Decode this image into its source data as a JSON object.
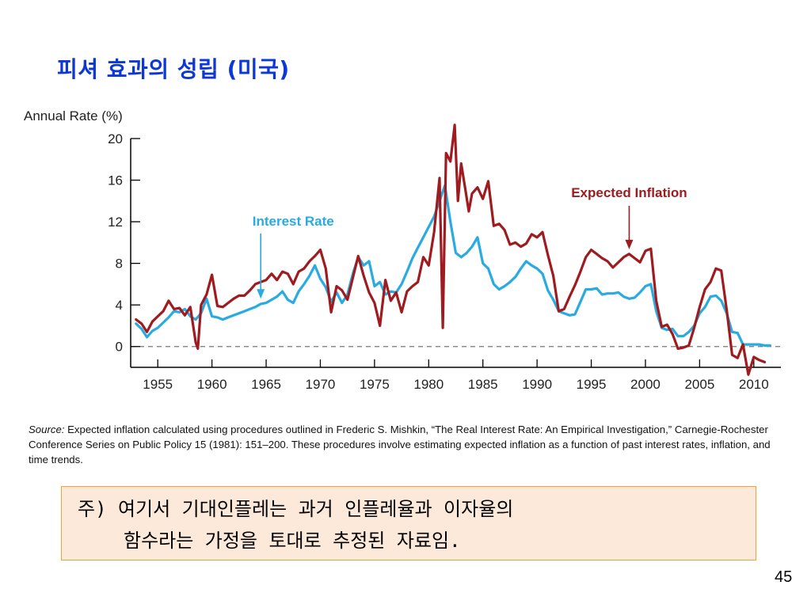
{
  "slide": {
    "title": "피셔 효과의 성립 (미국)",
    "page_number": "45"
  },
  "source": {
    "label": "Source:",
    "text": " Expected inflation calculated using procedures outlined in Frederic S. Mishkin, “The Real Interest Rate: An Empirical Investigation,” Carnegie-Rochester Conference Series on Public Policy 15 (1981): 151–200. These procedures involve estimating expected inflation as a function of past interest rates, inflation, and time trends."
  },
  "note": {
    "line1": "주) 여기서 기대인플레는 과거 인플레율과 이자율의",
    "line2": "함수라는 가정을 토대로 추정된 자료임."
  },
  "chart_data": {
    "type": "line",
    "ylabel": "Annual Rate (%)",
    "xlim": [
      1952.5,
      2012.5
    ],
    "ylim": [
      -2,
      20
    ],
    "yticks": [
      0,
      4,
      8,
      12,
      16,
      20
    ],
    "xticks": [
      1955,
      1960,
      1965,
      1970,
      1975,
      1980,
      1985,
      1990,
      1995,
      2000,
      2005,
      2010
    ],
    "zero_line": "dashed",
    "colors": {
      "interest_rate": "#29abe2",
      "expected_inflation": "#9e1b20"
    },
    "series": [
      {
        "name": "Interest Rate",
        "color": "#29abe2",
        "points": [
          [
            1953,
            2.2
          ],
          [
            1953.5,
            1.7
          ],
          [
            1954,
            0.9
          ],
          [
            1954.5,
            1.5
          ],
          [
            1955,
            1.8
          ],
          [
            1955.5,
            2.3
          ],
          [
            1956,
            2.8
          ],
          [
            1956.5,
            3.4
          ],
          [
            1957,
            3.3
          ],
          [
            1957.5,
            3.6
          ],
          [
            1958,
            2.9
          ],
          [
            1958.5,
            2.6
          ],
          [
            1959,
            3.2
          ],
          [
            1959.5,
            4.6
          ],
          [
            1960,
            2.9
          ],
          [
            1960.5,
            2.8
          ],
          [
            1961,
            2.6
          ],
          [
            1961.5,
            2.8
          ],
          [
            1962,
            3.0
          ],
          [
            1962.5,
            3.2
          ],
          [
            1963,
            3.4
          ],
          [
            1963.5,
            3.6
          ],
          [
            1964,
            3.8
          ],
          [
            1964.5,
            4.1
          ],
          [
            1965,
            4.2
          ],
          [
            1965.5,
            4.5
          ],
          [
            1966,
            4.8
          ],
          [
            1966.5,
            5.3
          ],
          [
            1967,
            4.5
          ],
          [
            1967.5,
            4.2
          ],
          [
            1968,
            5.3
          ],
          [
            1968.5,
            6.0
          ],
          [
            1969,
            6.8
          ],
          [
            1969.5,
            7.8
          ],
          [
            1970,
            6.5
          ],
          [
            1970.5,
            5.7
          ],
          [
            1971,
            4.3
          ],
          [
            1971.5,
            5.2
          ],
          [
            1972,
            4.2
          ],
          [
            1972.5,
            5.0
          ],
          [
            1973,
            7.0
          ],
          [
            1973.5,
            8.6
          ],
          [
            1974,
            7.8
          ],
          [
            1974.5,
            8.2
          ],
          [
            1975,
            5.8
          ],
          [
            1975.5,
            6.2
          ],
          [
            1976,
            5.0
          ],
          [
            1976.5,
            5.3
          ],
          [
            1977,
            5.2
          ],
          [
            1977.5,
            6.0
          ],
          [
            1978,
            7.2
          ],
          [
            1978.5,
            8.5
          ],
          [
            1979,
            9.5
          ],
          [
            1979.5,
            10.5
          ],
          [
            1980,
            11.5
          ],
          [
            1980.5,
            12.5
          ],
          [
            1981,
            14.0
          ],
          [
            1981.5,
            15.5
          ],
          [
            1982,
            12.0
          ],
          [
            1982.5,
            9.0
          ],
          [
            1983,
            8.6
          ],
          [
            1983.5,
            9.0
          ],
          [
            1984,
            9.6
          ],
          [
            1984.5,
            10.5
          ],
          [
            1985,
            8.0
          ],
          [
            1985.5,
            7.5
          ],
          [
            1986,
            6.0
          ],
          [
            1986.5,
            5.5
          ],
          [
            1987,
            5.8
          ],
          [
            1987.5,
            6.2
          ],
          [
            1988,
            6.7
          ],
          [
            1988.5,
            7.5
          ],
          [
            1989,
            8.2
          ],
          [
            1989.5,
            7.8
          ],
          [
            1990,
            7.5
          ],
          [
            1990.5,
            7.0
          ],
          [
            1991,
            5.4
          ],
          [
            1991.5,
            4.5
          ],
          [
            1992,
            3.4
          ],
          [
            1992.5,
            3.2
          ],
          [
            1993,
            3.0
          ],
          [
            1993.5,
            3.1
          ],
          [
            1994,
            4.3
          ],
          [
            1994.5,
            5.5
          ],
          [
            1995,
            5.5
          ],
          [
            1995.5,
            5.6
          ],
          [
            1996,
            5.0
          ],
          [
            1996.5,
            5.1
          ],
          [
            1997,
            5.1
          ],
          [
            1997.5,
            5.2
          ],
          [
            1998,
            4.8
          ],
          [
            1998.5,
            4.6
          ],
          [
            1999,
            4.7
          ],
          [
            1999.5,
            5.2
          ],
          [
            2000,
            5.8
          ],
          [
            2000.5,
            6.0
          ],
          [
            2001,
            3.4
          ],
          [
            2001.5,
            1.8
          ],
          [
            2002,
            1.6
          ],
          [
            2002.5,
            1.7
          ],
          [
            2003,
            1.0
          ],
          [
            2003.5,
            1.0
          ],
          [
            2004,
            1.4
          ],
          [
            2004.5,
            2.0
          ],
          [
            2005,
            3.2
          ],
          [
            2005.5,
            3.8
          ],
          [
            2006,
            4.8
          ],
          [
            2006.5,
            4.9
          ],
          [
            2007,
            4.4
          ],
          [
            2007.5,
            3.2
          ],
          [
            2008,
            1.4
          ],
          [
            2008.5,
            1.3
          ],
          [
            2009,
            0.2
          ],
          [
            2009.5,
            0.2
          ],
          [
            2010,
            0.2
          ],
          [
            2010.5,
            0.2
          ],
          [
            2011,
            0.1
          ],
          [
            2011.5,
            0.1
          ]
        ]
      },
      {
        "name": "Expected Inflation",
        "color": "#9e1b20",
        "points": [
          [
            1953,
            2.6
          ],
          [
            1953.5,
            2.2
          ],
          [
            1954,
            1.4
          ],
          [
            1954.5,
            2.4
          ],
          [
            1955,
            2.9
          ],
          [
            1955.5,
            3.4
          ],
          [
            1956,
            4.4
          ],
          [
            1956.5,
            3.6
          ],
          [
            1957,
            3.7
          ],
          [
            1957.5,
            3.0
          ],
          [
            1958,
            3.8
          ],
          [
            1958.5,
            0.4
          ],
          [
            1958.7,
            -0.2
          ],
          [
            1959,
            4.0
          ],
          [
            1959.5,
            5.0
          ],
          [
            1960,
            6.9
          ],
          [
            1960.5,
            3.9
          ],
          [
            1961,
            3.8
          ],
          [
            1961.5,
            4.2
          ],
          [
            1962,
            4.6
          ],
          [
            1962.5,
            4.9
          ],
          [
            1963,
            4.9
          ],
          [
            1963.5,
            5.4
          ],
          [
            1964,
            6.0
          ],
          [
            1964.5,
            6.2
          ],
          [
            1965,
            6.4
          ],
          [
            1965.5,
            7.0
          ],
          [
            1966,
            6.4
          ],
          [
            1966.5,
            7.2
          ],
          [
            1967,
            7.0
          ],
          [
            1967.5,
            6.0
          ],
          [
            1968,
            7.2
          ],
          [
            1968.5,
            7.5
          ],
          [
            1969,
            8.2
          ],
          [
            1969.5,
            8.7
          ],
          [
            1970,
            9.3
          ],
          [
            1970.5,
            7.5
          ],
          [
            1971,
            3.3
          ],
          [
            1971.5,
            5.8
          ],
          [
            1972,
            5.4
          ],
          [
            1972.5,
            4.5
          ],
          [
            1973,
            6.6
          ],
          [
            1973.5,
            8.7
          ],
          [
            1974,
            6.8
          ],
          [
            1974.5,
            5.2
          ],
          [
            1975,
            4.2
          ],
          [
            1975.5,
            2.0
          ],
          [
            1976,
            6.4
          ],
          [
            1976.5,
            4.4
          ],
          [
            1977,
            5.2
          ],
          [
            1977.5,
            3.3
          ],
          [
            1978,
            5.3
          ],
          [
            1978.5,
            5.8
          ],
          [
            1979,
            6.2
          ],
          [
            1979.5,
            8.6
          ],
          [
            1980,
            7.8
          ],
          [
            1980.5,
            11.0
          ],
          [
            1981,
            16.2
          ],
          [
            1981.3,
            1.8
          ],
          [
            1981.6,
            18.6
          ],
          [
            1982,
            17.8
          ],
          [
            1982.4,
            21.3
          ],
          [
            1982.7,
            14.0
          ],
          [
            1983,
            17.6
          ],
          [
            1983.4,
            15.0
          ],
          [
            1983.7,
            13.0
          ],
          [
            1984,
            14.7
          ],
          [
            1984.5,
            15.3
          ],
          [
            1985,
            14.2
          ],
          [
            1985.5,
            15.9
          ],
          [
            1986,
            11.6
          ],
          [
            1986.5,
            11.8
          ],
          [
            1987,
            11.2
          ],
          [
            1987.5,
            9.8
          ],
          [
            1988,
            10.0
          ],
          [
            1988.5,
            9.6
          ],
          [
            1989,
            9.9
          ],
          [
            1989.5,
            10.8
          ],
          [
            1990,
            10.5
          ],
          [
            1990.5,
            11.0
          ],
          [
            1991,
            8.8
          ],
          [
            1991.5,
            6.8
          ],
          [
            1992,
            3.4
          ],
          [
            1992.5,
            3.6
          ],
          [
            1993,
            4.8
          ],
          [
            1993.5,
            5.9
          ],
          [
            1994,
            7.2
          ],
          [
            1994.5,
            8.6
          ],
          [
            1995,
            9.3
          ],
          [
            1995.5,
            8.9
          ],
          [
            1996,
            8.5
          ],
          [
            1996.5,
            8.2
          ],
          [
            1997,
            7.6
          ],
          [
            1997.5,
            8.1
          ],
          [
            1998,
            8.6
          ],
          [
            1998.5,
            8.9
          ],
          [
            1999,
            8.5
          ],
          [
            1999.5,
            8.1
          ],
          [
            2000,
            9.2
          ],
          [
            2000.5,
            9.4
          ],
          [
            2001,
            4.4
          ],
          [
            2001.5,
            1.9
          ],
          [
            2002,
            2.1
          ],
          [
            2002.5,
            1.2
          ],
          [
            2003,
            -0.2
          ],
          [
            2003.5,
            -0.1
          ],
          [
            2004,
            0.1
          ],
          [
            2004.5,
            1.8
          ],
          [
            2005,
            3.8
          ],
          [
            2005.5,
            5.5
          ],
          [
            2006,
            6.2
          ],
          [
            2006.5,
            7.5
          ],
          [
            2007,
            7.3
          ],
          [
            2007.5,
            3.5
          ],
          [
            2008,
            -0.8
          ],
          [
            2008.5,
            -1.1
          ],
          [
            2009,
            0.2
          ],
          [
            2009.5,
            -2.7
          ],
          [
            2010,
            -1.0
          ],
          [
            2010.5,
            -1.3
          ],
          [
            2011,
            -1.5
          ]
        ]
      }
    ],
    "annotations": [
      {
        "text": "Interest Rate",
        "color": "#29abe2",
        "points_to": [
          1964.5,
          4.3
        ]
      },
      {
        "text": "Expected Inflation",
        "color": "#9e1b20",
        "points_to": [
          1998.5,
          8.9
        ]
      }
    ]
  }
}
